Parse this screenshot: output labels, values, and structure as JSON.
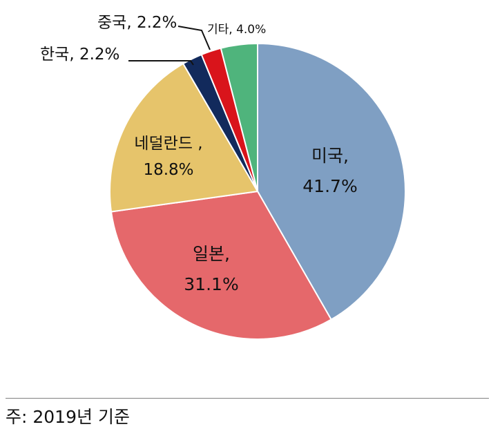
{
  "chart_data": {
    "type": "pie",
    "title": "",
    "slices": [
      {
        "label": "미국,",
        "pct_text": "41.7%",
        "value": 41.7,
        "color": "#7f9fc3"
      },
      {
        "label": "일본,",
        "pct_text": "31.1%",
        "value": 31.1,
        "color": "#e5686b"
      },
      {
        "label": "네덜란드 ,",
        "pct_text": "18.8%",
        "value": 18.8,
        "color": "#e6c46b"
      },
      {
        "label": "한국, 2.2%",
        "pct_text": "",
        "value": 2.2,
        "color": "#122a5c"
      },
      {
        "label": "중국, 2.2%",
        "pct_text": "",
        "value": 2.2,
        "color": "#d9141b"
      },
      {
        "label": "기타, 4.0%",
        "pct_text": "",
        "value": 4.0,
        "color": "#4fb47c"
      }
    ]
  },
  "footnote": "주: 2019년 기준"
}
